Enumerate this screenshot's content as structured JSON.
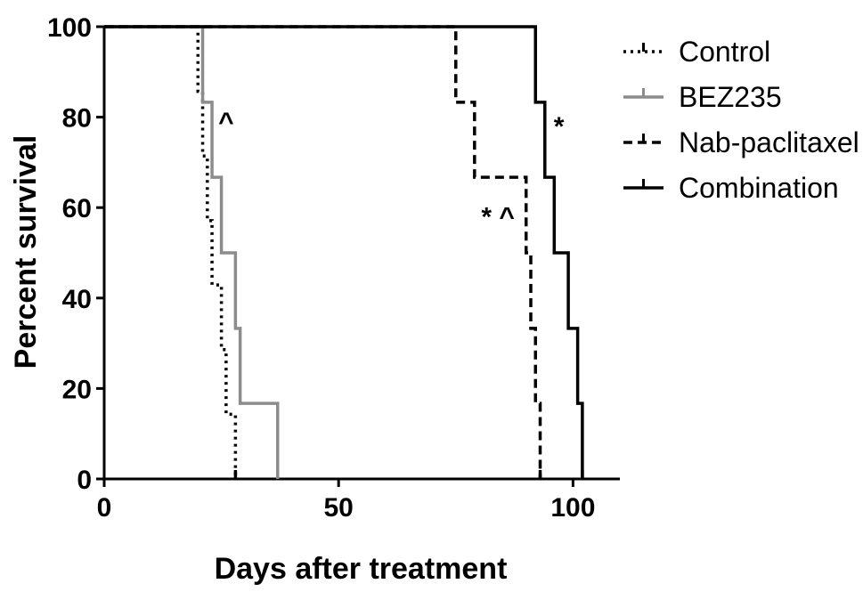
{
  "chart_data": {
    "type": "line",
    "subtype": "kaplan-meier-step",
    "title": "",
    "xlabel": "Days after treatment",
    "ylabel": "Percent survival",
    "xlim": [
      0,
      110
    ],
    "ylim": [
      0,
      100
    ],
    "xticks": [
      0,
      50,
      100
    ],
    "yticks": [
      0,
      20,
      40,
      60,
      80,
      100
    ],
    "grid": false,
    "legend_position": "right",
    "series": [
      {
        "name": "Control",
        "color": "#000000",
        "style": "dotted",
        "steps": [
          [
            0,
            100
          ],
          [
            20,
            85.7
          ],
          [
            21,
            71.4
          ],
          [
            22,
            57.1
          ],
          [
            23,
            42.9
          ],
          [
            25,
            28.6
          ],
          [
            26,
            14.3
          ],
          [
            28,
            0
          ]
        ]
      },
      {
        "name": "BEZ235",
        "color": "#8c8c8c",
        "style": "solid",
        "steps": [
          [
            0,
            100
          ],
          [
            21,
            83.3
          ],
          [
            23,
            66.7
          ],
          [
            25,
            50
          ],
          [
            28,
            33.3
          ],
          [
            29,
            16.7
          ],
          [
            37,
            0
          ]
        ]
      },
      {
        "name": "Nab-paclitaxel",
        "color": "#000000",
        "style": "dashed",
        "steps": [
          [
            0,
            100
          ],
          [
            75,
            83.3
          ],
          [
            79,
            66.7
          ],
          [
            90,
            50
          ],
          [
            91,
            33.3
          ],
          [
            92,
            16.7
          ],
          [
            93,
            0
          ]
        ]
      },
      {
        "name": "Combination",
        "color": "#000000",
        "style": "solid",
        "steps": [
          [
            0,
            100
          ],
          [
            92,
            83.3
          ],
          [
            94,
            66.7
          ],
          [
            96,
            50
          ],
          [
            99,
            33.3
          ],
          [
            101,
            16.7
          ],
          [
            102,
            0
          ]
        ]
      }
    ],
    "annotations": [
      {
        "text": "^",
        "x": 26,
        "y": 77
      },
      {
        "text": "*",
        "x": 97,
        "y": 76
      },
      {
        "text": "* ^",
        "x": 84,
        "y": 56
      }
    ]
  }
}
